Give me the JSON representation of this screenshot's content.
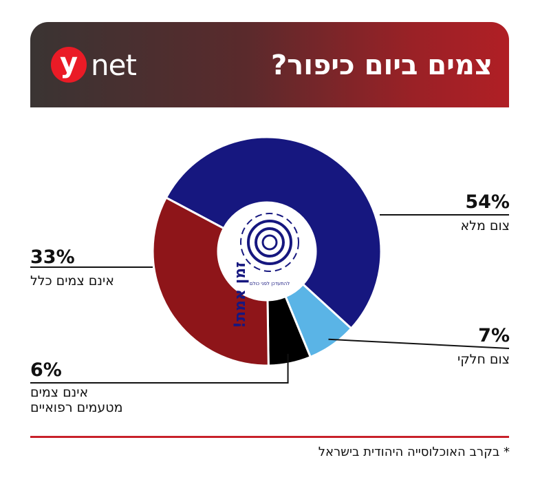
{
  "header": {
    "brand_mark": "y",
    "brand_text": "net",
    "title": "צמים ביום כיפור?"
  },
  "center_badge": {
    "title": "זמן אמת!",
    "subtitle": "להתעדכן לפני כולם"
  },
  "chart_data": {
    "type": "pie",
    "title": "צמים ביום כיפור?",
    "donut": true,
    "slices": [
      {
        "label": "צום מלא",
        "value": 54,
        "display": "54%",
        "color": "#16177f"
      },
      {
        "label": "צום חלקי",
        "value": 7,
        "display": "7%",
        "color": "#5ab4e6"
      },
      {
        "label": "אינם צמים מטעמים רפואיים",
        "value": 6,
        "display": "6%",
        "color": "#000000"
      },
      {
        "label": "אינם צמים כלל",
        "value": 33,
        "display": "33%",
        "color": "#8e1519"
      }
    ]
  },
  "labels": {
    "full": {
      "pct": "54%",
      "text": "צום מלא"
    },
    "partial": {
      "pct": "7%",
      "text": "צום חלקי"
    },
    "medical": {
      "pct": "6%",
      "line1": "אינם צמים",
      "line2": "מטעמים רפואיים"
    },
    "none": {
      "pct": "33%",
      "text": "אינם צמים כלל"
    }
  },
  "footnote": "* בקרב האוכלוסייה היהודית בישראל",
  "colors": {
    "accent_red": "#c8202a"
  }
}
